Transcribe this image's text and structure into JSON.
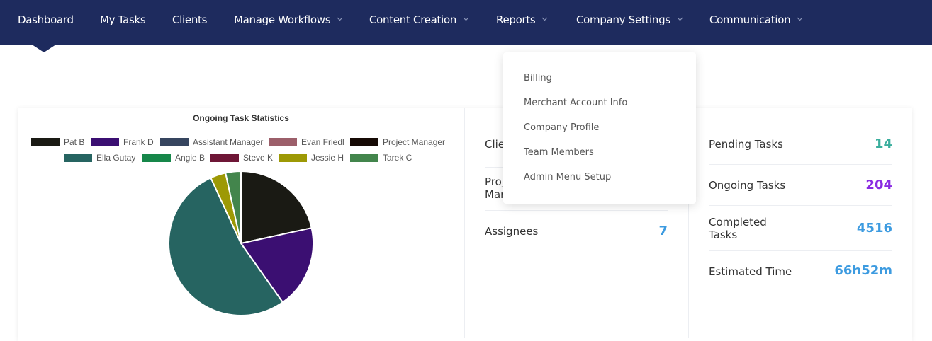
{
  "nav": {
    "items": [
      {
        "label": "Dashboard",
        "has_dropdown": false,
        "active": true
      },
      {
        "label": "My Tasks",
        "has_dropdown": false
      },
      {
        "label": "Clients",
        "has_dropdown": false
      },
      {
        "label": "Manage Workflows",
        "has_dropdown": true
      },
      {
        "label": "Content Creation",
        "has_dropdown": true
      },
      {
        "label": "Reports",
        "has_dropdown": true
      },
      {
        "label": "Company Settings",
        "has_dropdown": true,
        "open": true
      },
      {
        "label": "Communication",
        "has_dropdown": true
      }
    ]
  },
  "dropdown": {
    "items": [
      "Billing",
      "Merchant Account Info",
      "Company Profile",
      "Team Members",
      "Admin Menu Setup"
    ]
  },
  "chart_data": {
    "type": "pie",
    "title": "Ongoing Task Statistics",
    "legend": "top",
    "categories": [
      "Pat B",
      "Frank D",
      "Assistant Manager",
      "Evan Friedl",
      "Project Manager",
      "Ella Gutay",
      "Angie B",
      "Steve K",
      "Jessie H",
      "Tarek C"
    ],
    "values": [
      44,
      38,
      0,
      0,
      0,
      108,
      0,
      0,
      7,
      7
    ],
    "colors": [
      "#1a1a14",
      "#3b0f72",
      "#36455f",
      "#9c5f6a",
      "#160a05",
      "#266461",
      "#16874a",
      "#6e1636",
      "#9d9905",
      "#43854c"
    ]
  },
  "middle_stats": {
    "clients_label_partial": "Clie",
    "projects_label_partial_1": "Proj",
    "projects_label_partial_2": "Man",
    "assignees_label": "Assignees",
    "assignees_value": "7"
  },
  "right_stats": [
    {
      "label": "Pending Tasks",
      "value": "14",
      "color": "#3aae9d"
    },
    {
      "label": "Ongoing Tasks",
      "value": "204",
      "color": "#8a2be2"
    },
    {
      "label": "Completed\nTasks",
      "value": "4516",
      "color": "#3d9be0"
    },
    {
      "label": "Estimated Time",
      "value": "66h52m",
      "color": "#3d9be0"
    }
  ],
  "colors": {
    "nav_bg": "#1e2b5e",
    "assignees_value": "#3d9be0"
  }
}
